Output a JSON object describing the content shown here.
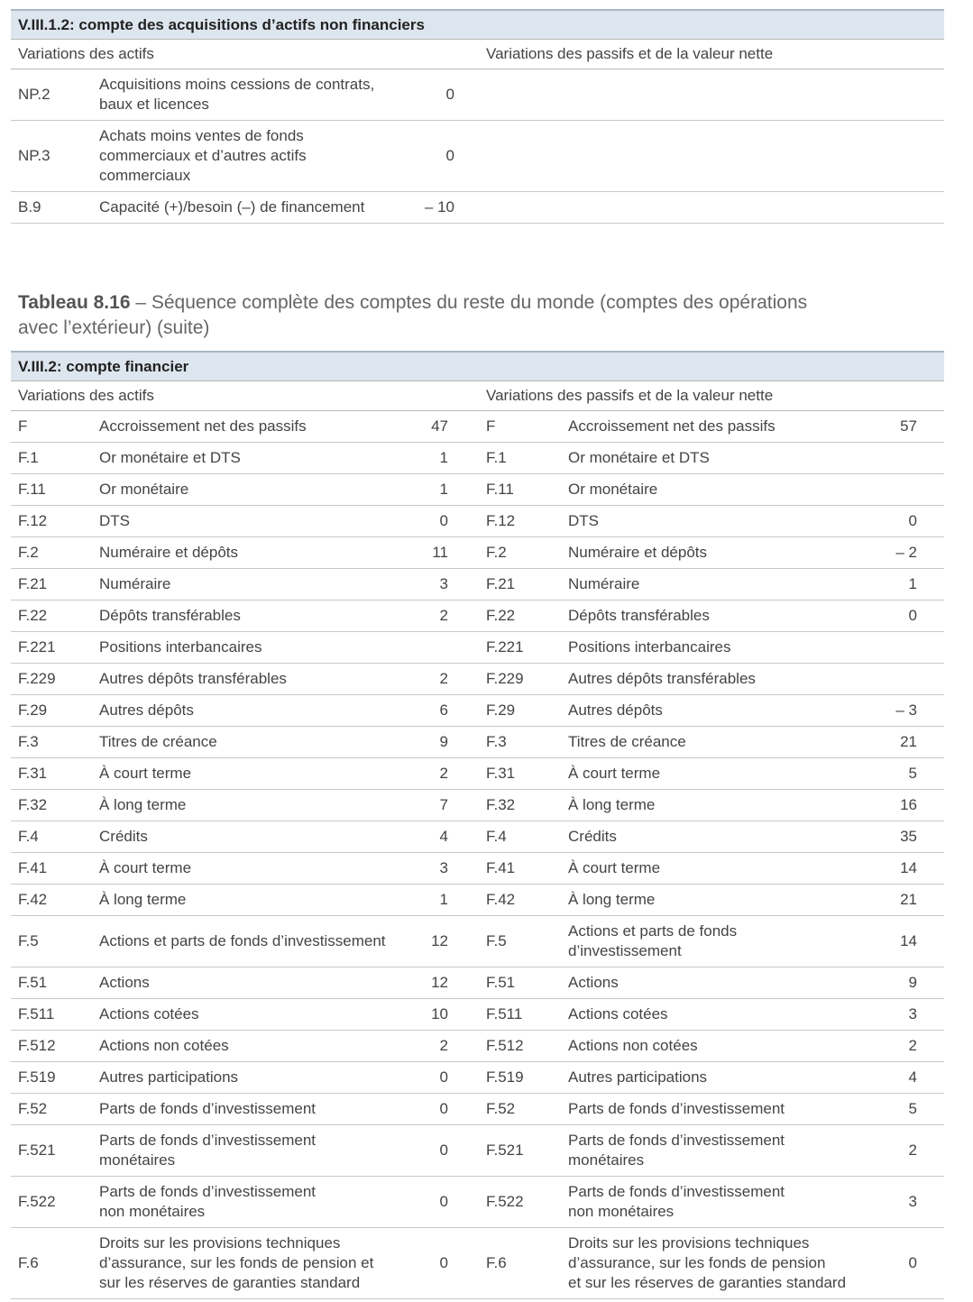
{
  "table1": {
    "header": "V.III.1.2: compte des acquisitions d’actifs non financiers",
    "left_heading": "Variations des actifs",
    "right_heading": "Variations des passifs et de la valeur nette",
    "rows": [
      {
        "left": {
          "code": "NP.2",
          "label": "Acquisitions moins cessions de contrats,\nbaux et licences",
          "value": "0"
        }
      },
      {
        "left": {
          "code": "NP.3",
          "label": "Achats moins ventes de fonds\ncommerciaux et d’autres actifs\ncommerciaux",
          "value": "0"
        }
      },
      {
        "left": {
          "code": "B.9",
          "label": "Capacité (+)/besoin (–) de financement",
          "value": "– 10"
        }
      }
    ]
  },
  "caption": {
    "number": "Tableau 8.16",
    "text": " – Séquence complète des comptes du reste du monde (comptes des opérations\navec l’extérieur) (suite)"
  },
  "table2": {
    "header": "V.III.2: compte financier",
    "left_heading": "Variations des actifs",
    "right_heading": "Variations des passifs et de la valeur nette",
    "rows": [
      {
        "left": {
          "code": "F",
          "label": "Accroissement net des passifs",
          "value": "47"
        },
        "right": {
          "code": "F",
          "label": "Accroissement net des passifs",
          "value": "57"
        }
      },
      {
        "left": {
          "code": "F.1",
          "label": "Or monétaire et DTS",
          "value": "1"
        },
        "right": {
          "code": "F.1",
          "label": "Or monétaire et DTS",
          "value": null
        }
      },
      {
        "left": {
          "code": "F.11",
          "label": "Or monétaire",
          "value": "1"
        },
        "right": {
          "code": "F.11",
          "label": "Or monétaire",
          "value": null
        }
      },
      {
        "left": {
          "code": "F.12",
          "label": "DTS",
          "value": "0"
        },
        "right": {
          "code": "F.12",
          "label": "DTS",
          "value": "0"
        }
      },
      {
        "left": {
          "code": "F.2",
          "label": "Numéraire et dépôts",
          "value": "11"
        },
        "right": {
          "code": "F.2",
          "label": "Numéraire et dépôts",
          "value": "– 2"
        }
      },
      {
        "left": {
          "code": "F.21",
          "label": "Numéraire",
          "value": "3"
        },
        "right": {
          "code": "F.21",
          "label": "Numéraire",
          "value": "1"
        }
      },
      {
        "left": {
          "code": "F.22",
          "label": "Dépôts transférables",
          "value": "2"
        },
        "right": {
          "code": "F.22",
          "label": "Dépôts transférables",
          "value": "0"
        }
      },
      {
        "left": {
          "code": "F.221",
          "label": "Positions interbancaires",
          "value": null
        },
        "right": {
          "code": "F.221",
          "label": "Positions interbancaires",
          "value": null
        }
      },
      {
        "left": {
          "code": "F.229",
          "label": "Autres dépôts transférables",
          "value": "2"
        },
        "right": {
          "code": "F.229",
          "label": "Autres dépôts transférables",
          "value": null
        }
      },
      {
        "left": {
          "code": "F.29",
          "label": "Autres dépôts",
          "value": "6"
        },
        "right": {
          "code": "F.29",
          "label": "Autres dépôts",
          "value": "– 3"
        }
      },
      {
        "left": {
          "code": "F.3",
          "label": "Titres de créance",
          "value": "9"
        },
        "right": {
          "code": "F.3",
          "label": "Titres de créance",
          "value": "21"
        }
      },
      {
        "left": {
          "code": "F.31",
          "label": "À court terme",
          "value": "2"
        },
        "right": {
          "code": "F.31",
          "label": "À court terme",
          "value": "5"
        }
      },
      {
        "left": {
          "code": "F.32",
          "label": "À long terme",
          "value": "7"
        },
        "right": {
          "code": "F.32",
          "label": "À long terme",
          "value": "16"
        }
      },
      {
        "left": {
          "code": "F.4",
          "label": "Crédits",
          "value": "4"
        },
        "right": {
          "code": "F.4",
          "label": "Crédits",
          "value": "35"
        }
      },
      {
        "left": {
          "code": "F.41",
          "label": "À court terme",
          "value": "3"
        },
        "right": {
          "code": "F.41",
          "label": "À court terme",
          "value": "14"
        }
      },
      {
        "left": {
          "code": "F.42",
          "label": "À long terme",
          "value": "1"
        },
        "right": {
          "code": "F.42",
          "label": "À long terme",
          "value": "21"
        }
      },
      {
        "left": {
          "code": "F.5",
          "label": "Actions et parts de fonds d’investissement",
          "value": "12"
        },
        "right": {
          "code": "F.5",
          "label": "Actions et parts de fonds\nd’investissement",
          "value": "14"
        }
      },
      {
        "left": {
          "code": "F.51",
          "label": "Actions",
          "value": "12"
        },
        "right": {
          "code": "F.51",
          "label": "Actions",
          "value": "9"
        }
      },
      {
        "left": {
          "code": "F.511",
          "label": "Actions cotées",
          "value": "10"
        },
        "right": {
          "code": "F.511",
          "label": "Actions cotées",
          "value": "3"
        }
      },
      {
        "left": {
          "code": "F.512",
          "label": "Actions non cotées",
          "value": "2"
        },
        "right": {
          "code": "F.512",
          "label": "Actions non cotées",
          "value": "2"
        }
      },
      {
        "left": {
          "code": "F.519",
          "label": "Autres participations",
          "value": "0"
        },
        "right": {
          "code": "F.519",
          "label": "Autres participations",
          "value": "4"
        }
      },
      {
        "left": {
          "code": "F.52",
          "label": "Parts de fonds d’investissement",
          "value": "0"
        },
        "right": {
          "code": "F.52",
          "label": "Parts de fonds d’investissement",
          "value": "5"
        }
      },
      {
        "left": {
          "code": "F.521",
          "label": "Parts de fonds d’investissement\nmonétaires",
          "value": "0"
        },
        "right": {
          "code": "F.521",
          "label": "Parts de fonds d’investissement\nmonétaires",
          "value": "2"
        }
      },
      {
        "left": {
          "code": "F.522",
          "label": "Parts de fonds d’investissement\nnon monétaires",
          "value": "0"
        },
        "right": {
          "code": "F.522",
          "label": "Parts de fonds d’investissement\nnon monétaires",
          "value": "3"
        }
      },
      {
        "left": {
          "code": "F.6",
          "label": "Droits sur les provisions techniques\nd’assurance, sur les fonds de pension et\nsur les réserves de garanties standard",
          "value": "0"
        },
        "right": {
          "code": "F.6",
          "label": "Droits sur les provisions techniques\nd’assurance, sur les fonds de pension\net sur les réserves de garanties standard",
          "value": "0"
        }
      }
    ]
  }
}
